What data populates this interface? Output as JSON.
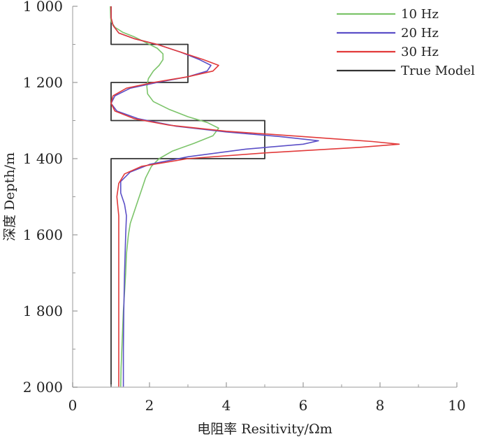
{
  "chart_data": {
    "type": "line",
    "title": "",
    "xlabel": "电阻率 Resitivity/Ωm",
    "ylabel": "深度 Depth/m",
    "xlim": [
      0,
      10
    ],
    "ylim": [
      1000,
      2000
    ],
    "y_inverted": true,
    "xticks": [
      0,
      2,
      4,
      6,
      8,
      10
    ],
    "yticks": [
      1000,
      1200,
      1400,
      1600,
      1800,
      2000
    ],
    "xtick_labels": [
      "0",
      "2",
      "4",
      "6",
      "8",
      "10"
    ],
    "ytick_labels": [
      "1 000",
      "1 200",
      "1 400",
      "1 600",
      "1 800",
      "2 000"
    ],
    "minor_ticks": true,
    "grid": false,
    "legend_position": "top-right",
    "series": [
      {
        "name": "10 Hz",
        "color": "#7cc46a",
        "points": [
          [
            0.98,
            1000
          ],
          [
            0.99,
            1030
          ],
          [
            1.0,
            1040
          ],
          [
            1.1,
            1055
          ],
          [
            1.3,
            1068
          ],
          [
            1.6,
            1080
          ],
          [
            1.9,
            1095
          ],
          [
            2.2,
            1110
          ],
          [
            2.35,
            1125
          ],
          [
            2.35,
            1140
          ],
          [
            2.25,
            1155
          ],
          [
            2.1,
            1170
          ],
          [
            1.97,
            1190
          ],
          [
            1.93,
            1210
          ],
          [
            1.95,
            1230
          ],
          [
            2.1,
            1250
          ],
          [
            2.5,
            1270
          ],
          [
            3.0,
            1290
          ],
          [
            3.5,
            1305
          ],
          [
            3.8,
            1320
          ],
          [
            3.65,
            1340
          ],
          [
            3.15,
            1360
          ],
          [
            2.6,
            1380
          ],
          [
            2.25,
            1400
          ],
          [
            2.05,
            1420
          ],
          [
            1.9,
            1450
          ],
          [
            1.8,
            1480
          ],
          [
            1.7,
            1510
          ],
          [
            1.6,
            1540
          ],
          [
            1.5,
            1570
          ],
          [
            1.45,
            1600
          ],
          [
            1.4,
            1650
          ],
          [
            1.38,
            1700
          ],
          [
            1.35,
            1750
          ],
          [
            1.32,
            1800
          ],
          [
            1.3,
            1850
          ],
          [
            1.28,
            1900
          ],
          [
            1.26,
            1950
          ],
          [
            1.25,
            2000
          ]
        ]
      },
      {
        "name": "20 Hz",
        "color": "#5b4fc7",
        "points": [
          [
            1.0,
            1000
          ],
          [
            1.0,
            1030
          ],
          [
            1.05,
            1050
          ],
          [
            1.2,
            1070
          ],
          [
            1.6,
            1085
          ],
          [
            2.2,
            1100
          ],
          [
            2.8,
            1120
          ],
          [
            3.3,
            1140
          ],
          [
            3.6,
            1155
          ],
          [
            3.5,
            1170
          ],
          [
            3.0,
            1185
          ],
          [
            2.2,
            1200
          ],
          [
            1.5,
            1215
          ],
          [
            1.1,
            1235
          ],
          [
            1.0,
            1255
          ],
          [
            1.15,
            1275
          ],
          [
            1.7,
            1295
          ],
          [
            2.7,
            1315
          ],
          [
            4.0,
            1330
          ],
          [
            5.4,
            1342
          ],
          [
            6.4,
            1353
          ],
          [
            6.0,
            1362
          ],
          [
            4.5,
            1375
          ],
          [
            3.0,
            1395
          ],
          [
            2.0,
            1415
          ],
          [
            1.5,
            1435
          ],
          [
            1.25,
            1460
          ],
          [
            1.25,
            1490
          ],
          [
            1.35,
            1520
          ],
          [
            1.4,
            1550
          ],
          [
            1.38,
            1600
          ],
          [
            1.35,
            1700
          ],
          [
            1.33,
            1800
          ],
          [
            1.32,
            1900
          ],
          [
            1.32,
            2000
          ]
        ]
      },
      {
        "name": "30 Hz",
        "color": "#e23a3a",
        "points": [
          [
            1.0,
            1000
          ],
          [
            1.0,
            1030
          ],
          [
            1.05,
            1050
          ],
          [
            1.2,
            1070
          ],
          [
            1.6,
            1085
          ],
          [
            2.2,
            1100
          ],
          [
            2.8,
            1120
          ],
          [
            3.4,
            1140
          ],
          [
            3.8,
            1155
          ],
          [
            3.65,
            1170
          ],
          [
            3.0,
            1185
          ],
          [
            2.1,
            1200
          ],
          [
            1.4,
            1215
          ],
          [
            1.05,
            1235
          ],
          [
            1.0,
            1255
          ],
          [
            1.1,
            1275
          ],
          [
            1.6,
            1295
          ],
          [
            2.5,
            1312
          ],
          [
            4.0,
            1328
          ],
          [
            6.0,
            1342
          ],
          [
            7.8,
            1355
          ],
          [
            8.5,
            1362
          ],
          [
            7.5,
            1370
          ],
          [
            5.0,
            1385
          ],
          [
            3.0,
            1400
          ],
          [
            1.8,
            1420
          ],
          [
            1.35,
            1440
          ],
          [
            1.2,
            1465
          ],
          [
            1.15,
            1500
          ],
          [
            1.18,
            1530
          ],
          [
            1.2,
            1550
          ],
          [
            1.2,
            1600
          ],
          [
            1.2,
            1700
          ],
          [
            1.2,
            1800
          ],
          [
            1.2,
            1900
          ],
          [
            1.2,
            2000
          ]
        ]
      },
      {
        "name": "True Model",
        "color": "#333333",
        "points": [
          [
            1,
            2000
          ],
          [
            1,
            1400
          ],
          [
            5,
            1400
          ],
          [
            5,
            1300
          ],
          [
            1,
            1300
          ],
          [
            1,
            1200
          ],
          [
            3,
            1200
          ],
          [
            3,
            1100
          ],
          [
            1,
            1100
          ],
          [
            1,
            1000
          ]
        ]
      }
    ]
  }
}
